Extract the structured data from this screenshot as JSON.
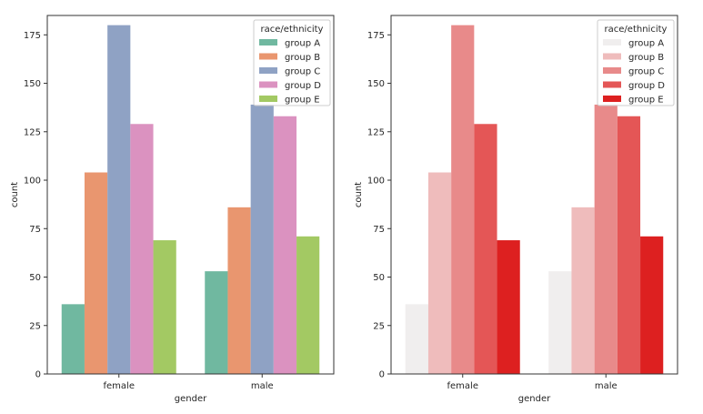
{
  "chart_data": [
    {
      "type": "bar",
      "title": "",
      "xlabel": "gender",
      "ylabel": "count",
      "ylim": [
        0,
        185
      ],
      "yticks": [
        0,
        25,
        50,
        75,
        100,
        125,
        150,
        175
      ],
      "categories": [
        "female",
        "male"
      ],
      "legend": {
        "title": "race/ethnicity",
        "placement": "top-right"
      },
      "series": [
        {
          "name": "group A",
          "color": "#70b8a0",
          "values": [
            36,
            53
          ]
        },
        {
          "name": "group B",
          "color": "#e9966f",
          "values": [
            104,
            86
          ]
        },
        {
          "name": "group C",
          "color": "#8fa2c4",
          "values": [
            180,
            139
          ]
        },
        {
          "name": "group D",
          "color": "#db92c0",
          "values": [
            129,
            133
          ]
        },
        {
          "name": "group E",
          "color": "#a3c963",
          "values": [
            69,
            71
          ]
        }
      ]
    },
    {
      "type": "bar",
      "title": "",
      "xlabel": "gender",
      "ylabel": "count",
      "ylim": [
        0,
        185
      ],
      "yticks": [
        0,
        25,
        50,
        75,
        100,
        125,
        150,
        175
      ],
      "categories": [
        "female",
        "male"
      ],
      "legend": {
        "title": "race/ethnicity",
        "placement": "top-right"
      },
      "series": [
        {
          "name": "group A",
          "color": "#f0eeee",
          "values": [
            36,
            53
          ]
        },
        {
          "name": "group B",
          "color": "#efbcbc",
          "values": [
            104,
            86
          ]
        },
        {
          "name": "group C",
          "color": "#e88a8a",
          "values": [
            180,
            139
          ]
        },
        {
          "name": "group D",
          "color": "#e45656",
          "values": [
            129,
            133
          ]
        },
        {
          "name": "group E",
          "color": "#dd2020",
          "values": [
            69,
            71
          ]
        }
      ]
    }
  ]
}
